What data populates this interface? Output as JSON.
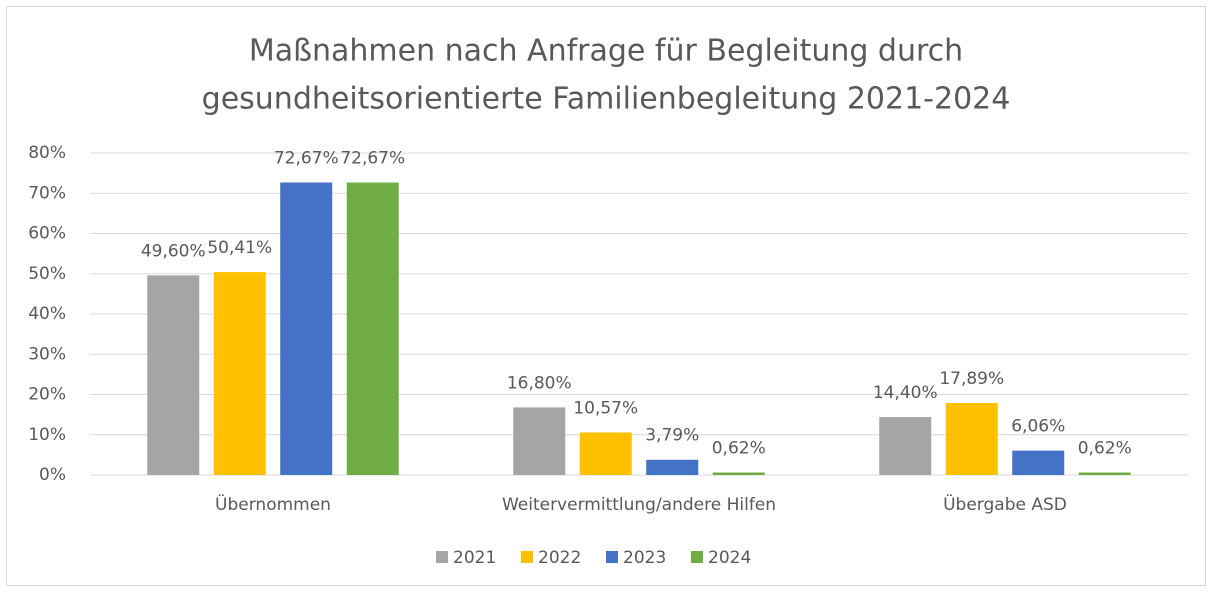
{
  "chart_data": {
    "type": "bar",
    "title": [
      "Maßnahmen nach Anfrage für Begleitung durch",
      "gesundheitsorientierte Familienbegleitung 2021-2024"
    ],
    "categories": [
      "Übernommen",
      "Weitervermittlung/andere Hilfen",
      "Übergabe ASD"
    ],
    "series": [
      {
        "name": "2021",
        "color": "#a5a5a5",
        "values": [
          49.6,
          16.8,
          14.4
        ],
        "value_labels": [
          "49,60%",
          "16,80%",
          "14,40%"
        ]
      },
      {
        "name": "2022",
        "color": "#ffc000",
        "values": [
          50.41,
          10.57,
          17.89
        ],
        "value_labels": [
          "50,41%",
          "10,57%",
          "17,89%"
        ]
      },
      {
        "name": "2023",
        "color": "#4472c4",
        "values": [
          72.67,
          3.79,
          6.06
        ],
        "value_labels": [
          "72,67%",
          "3,79%",
          "6,06%"
        ]
      },
      {
        "name": "2024",
        "color": "#70ad47",
        "values": [
          72.67,
          0.62,
          0.62
        ],
        "value_labels": [
          "72,67%",
          "0,62%",
          "0,62%"
        ]
      }
    ],
    "ylim": [
      0,
      80
    ],
    "yticks": [
      {
        "value": 0,
        "label": "0%"
      },
      {
        "value": 10,
        "label": "10%"
      },
      {
        "value": 20,
        "label": "20%"
      },
      {
        "value": 30,
        "label": "30%"
      },
      {
        "value": 40,
        "label": "40%"
      },
      {
        "value": 50,
        "label": "50%"
      },
      {
        "value": 60,
        "label": "60%"
      },
      {
        "value": 70,
        "label": "70%"
      },
      {
        "value": 80,
        "label": "80%"
      }
    ],
    "grid": true,
    "legend": "bottom"
  }
}
